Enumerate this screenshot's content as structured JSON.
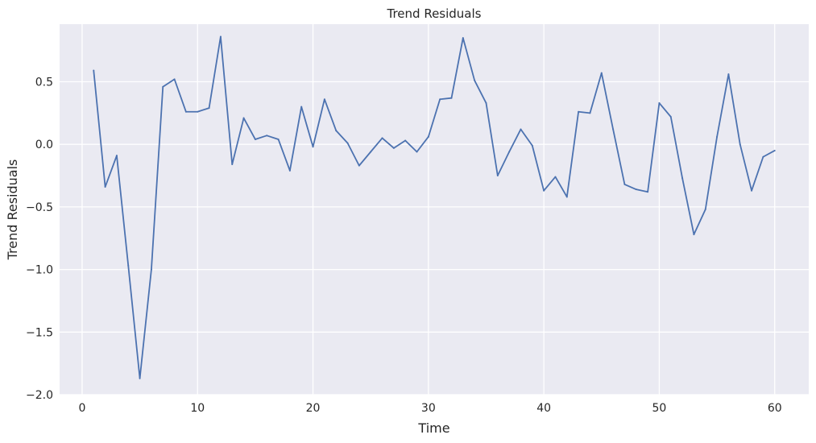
{
  "chart_data": {
    "type": "line",
    "title": "Trend Residuals",
    "xlabel": "Time",
    "ylabel": "Trend Residuals",
    "xlim": [
      -1.95,
      62.95
    ],
    "ylim": [
      -2.0,
      0.96
    ],
    "xticks": [
      0,
      10,
      20,
      30,
      40,
      50,
      60
    ],
    "xtick_labels": [
      "0",
      "10",
      "20",
      "30",
      "40",
      "50",
      "60"
    ],
    "yticks": [
      -2.0,
      -1.5,
      -1.0,
      -0.5,
      0.0,
      0.5
    ],
    "ytick_labels": [
      "−2.0",
      "−1.5",
      "−1.0",
      "−0.5",
      "0.0",
      "0.5"
    ],
    "grid": true,
    "colors": {
      "background": "#eaeaf2",
      "grid": "#ffffff",
      "line": "#4c72b0"
    },
    "series": [
      {
        "x": [
          1,
          2,
          3,
          4,
          5,
          6,
          7,
          8,
          9,
          10,
          11,
          12,
          13,
          14,
          15,
          16,
          17,
          18,
          19,
          20,
          21,
          22,
          23,
          24,
          25,
          26,
          27,
          28,
          29,
          30,
          31,
          32,
          33,
          34,
          35,
          36,
          37,
          38,
          39,
          40,
          41,
          42,
          43,
          44,
          45,
          46,
          47,
          48,
          49,
          50,
          51,
          52,
          53,
          54,
          55,
          56,
          57,
          58,
          59,
          60
        ],
        "values": [
          0.59,
          -0.34,
          -0.09,
          -0.97,
          -1.87,
          -1.0,
          0.46,
          0.52,
          0.26,
          0.26,
          0.29,
          0.86,
          -0.16,
          0.21,
          0.04,
          0.07,
          0.04,
          -0.21,
          0.3,
          -0.02,
          0.36,
          0.11,
          0.01,
          -0.17,
          -0.06,
          0.05,
          -0.03,
          0.03,
          -0.06,
          0.06,
          0.36,
          0.37,
          0.85,
          0.51,
          0.33,
          -0.25,
          -0.06,
          0.12,
          -0.01,
          -0.37,
          -0.26,
          -0.42,
          0.26,
          0.25,
          0.57,
          0.12,
          -0.32,
          -0.36,
          -0.38,
          0.33,
          0.22,
          -0.27,
          -0.72,
          -0.52,
          0.06,
          0.56,
          0.0,
          -0.37,
          -0.1,
          -0.05
        ]
      }
    ]
  }
}
